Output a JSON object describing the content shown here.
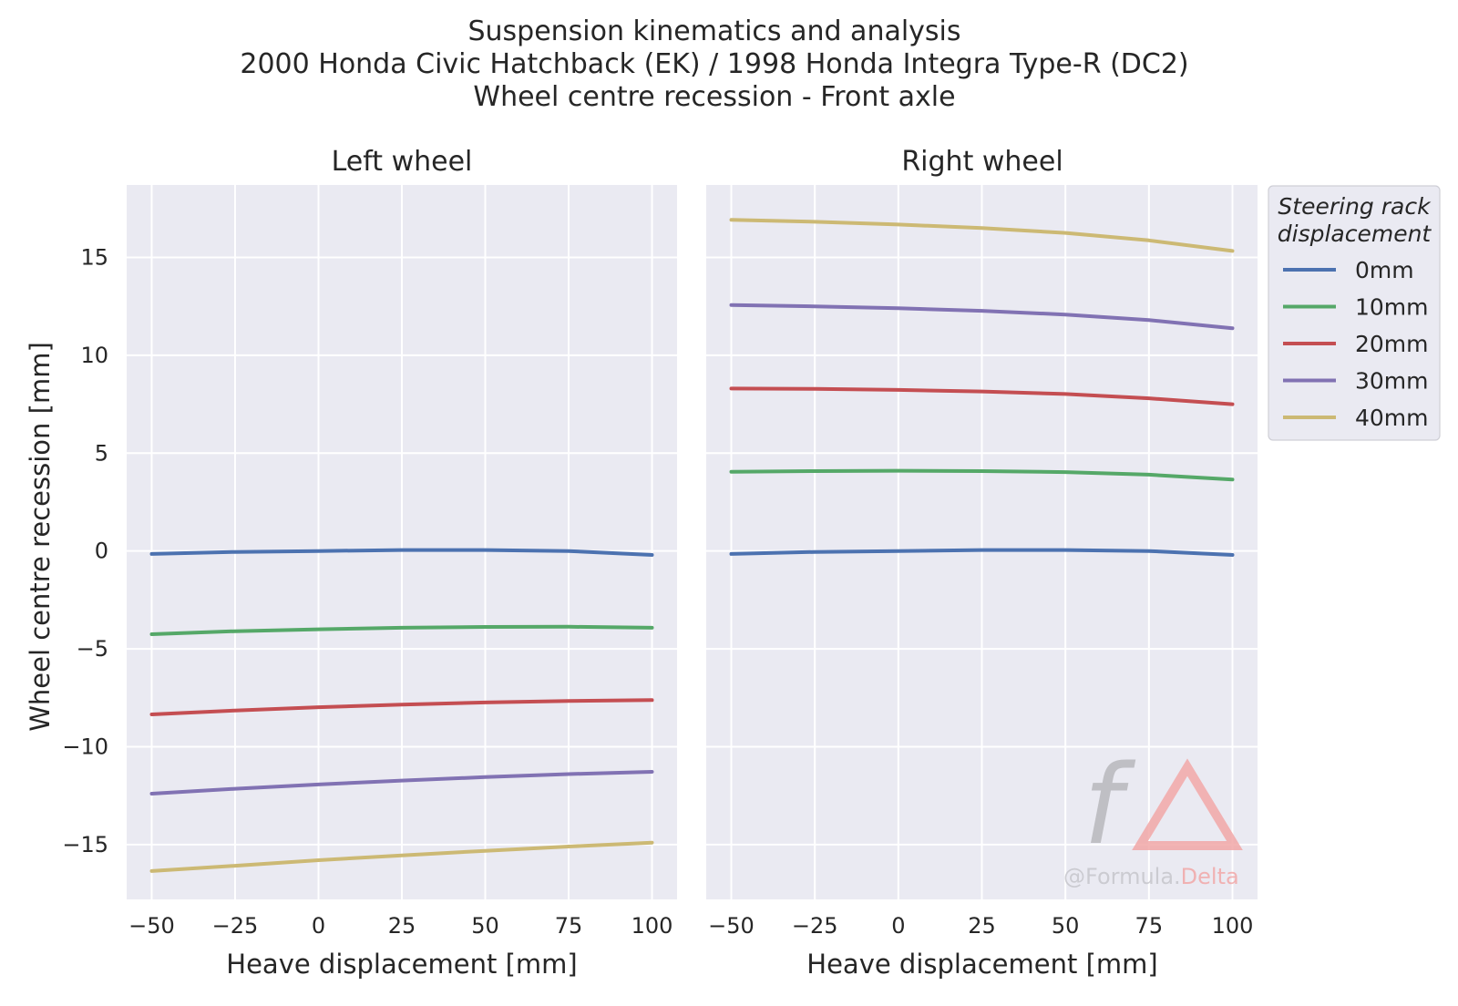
{
  "title_lines": [
    "Suspension kinematics and analysis",
    "2000 Honda Civic Hatchback (EK) / 1998 Honda Integra Type-R (DC2)",
    "Wheel centre recession - Front axle"
  ],
  "ylabel": "Wheel centre recession [mm]",
  "legend": {
    "title_lines": [
      "Steering rack",
      "displacement"
    ],
    "placement": "outside right"
  },
  "watermark": {
    "symbol": "f",
    "text_part1": "@Formula.",
    "text_part2": "Delta"
  },
  "style": {
    "axes_bg": "#eaeaf2",
    "grid": "#ffffff"
  },
  "chart_data": [
    {
      "type": "line",
      "title": "Left wheel",
      "xlabel": "Heave displacement [mm]",
      "ylabel": "Wheel centre recession [mm]",
      "xlim": [
        -57.5,
        107.5
      ],
      "ylim": [
        -17.8,
        18.7
      ],
      "xticks": [
        -50,
        -25,
        0,
        25,
        50,
        75,
        100
      ],
      "yticks": [
        -15,
        -10,
        -5,
        0,
        5,
        10,
        15
      ],
      "grid": true,
      "series": [
        {
          "name": "0mm",
          "color": "#4c72b0",
          "x": [
            -50,
            -25,
            0,
            25,
            50,
            75,
            100
          ],
          "y": [
            -0.15,
            -0.05,
            0.0,
            0.05,
            0.05,
            0.0,
            -0.2
          ]
        },
        {
          "name": "10mm",
          "color": "#55a868",
          "x": [
            -50,
            -25,
            0,
            25,
            50,
            75,
            100
          ],
          "y": [
            -4.25,
            -4.1,
            -4.0,
            -3.92,
            -3.88,
            -3.87,
            -3.92
          ]
        },
        {
          "name": "20mm",
          "color": "#c44e52",
          "x": [
            -50,
            -25,
            0,
            25,
            50,
            75,
            100
          ],
          "y": [
            -8.35,
            -8.15,
            -7.98,
            -7.85,
            -7.74,
            -7.66,
            -7.62
          ]
        },
        {
          "name": "30mm",
          "color": "#8172b3",
          "x": [
            -50,
            -25,
            0,
            25,
            50,
            75,
            100
          ],
          "y": [
            -12.4,
            -12.15,
            -11.93,
            -11.73,
            -11.55,
            -11.4,
            -11.28
          ]
        },
        {
          "name": "40mm",
          "color": "#ccb974",
          "x": [
            -50,
            -25,
            0,
            25,
            50,
            75,
            100
          ],
          "y": [
            -16.35,
            -16.08,
            -15.8,
            -15.55,
            -15.32,
            -15.1,
            -14.9
          ]
        }
      ]
    },
    {
      "type": "line",
      "title": "Right wheel",
      "xlabel": "Heave displacement [mm]",
      "xlim": [
        -57.5,
        107.5
      ],
      "ylim": [
        -17.8,
        18.7
      ],
      "xticks": [
        -50,
        -25,
        0,
        25,
        50,
        75,
        100
      ],
      "yticks": [
        -15,
        -10,
        -5,
        0,
        5,
        10,
        15
      ],
      "grid": true,
      "series": [
        {
          "name": "0mm",
          "color": "#4c72b0",
          "x": [
            -50,
            -25,
            0,
            25,
            50,
            75,
            100
          ],
          "y": [
            -0.15,
            -0.05,
            0.0,
            0.05,
            0.05,
            0.0,
            -0.2
          ]
        },
        {
          "name": "10mm",
          "color": "#55a868",
          "x": [
            -50,
            -25,
            0,
            25,
            50,
            75,
            100
          ],
          "y": [
            4.05,
            4.08,
            4.1,
            4.08,
            4.03,
            3.9,
            3.65
          ]
        },
        {
          "name": "20mm",
          "color": "#c44e52",
          "x": [
            -50,
            -25,
            0,
            25,
            50,
            75,
            100
          ],
          "y": [
            8.3,
            8.28,
            8.23,
            8.15,
            8.02,
            7.8,
            7.5
          ]
        },
        {
          "name": "30mm",
          "color": "#8172b3",
          "x": [
            -50,
            -25,
            0,
            25,
            50,
            75,
            100
          ],
          "y": [
            12.57,
            12.5,
            12.4,
            12.27,
            12.08,
            11.8,
            11.38
          ]
        },
        {
          "name": "40mm",
          "color": "#ccb974",
          "x": [
            -50,
            -25,
            0,
            25,
            50,
            75,
            100
          ],
          "y": [
            16.92,
            16.82,
            16.68,
            16.5,
            16.25,
            15.87,
            15.33
          ]
        }
      ]
    }
  ]
}
